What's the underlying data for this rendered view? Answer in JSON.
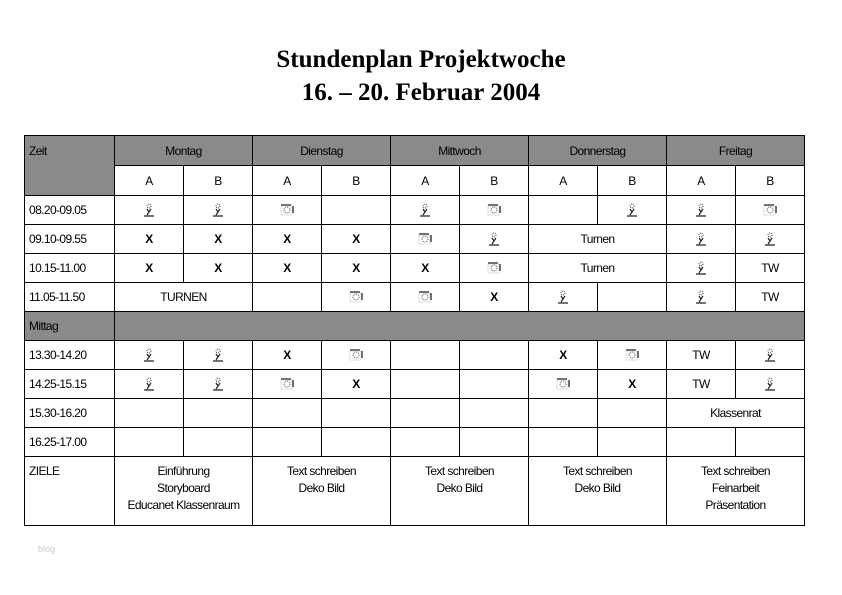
{
  "title_line1": "Stundenplan Projektwoche",
  "title_line2": "16. – 20. Februar 2004",
  "header": {
    "zeit": "Zeit",
    "days": [
      "Montag",
      "Dienstag",
      "Mittwoch",
      "Donnerstag",
      "Freitag"
    ],
    "sub": [
      "A",
      "B",
      "A",
      "B",
      "A",
      "B",
      "A",
      "B",
      "A",
      "B"
    ]
  },
  "rows": [
    {
      "time": "08.20-09.05",
      "cells": [
        {
          "icon": "figure"
        },
        {
          "icon": "figure"
        },
        {
          "icon": "camera"
        },
        {
          "text": ""
        },
        {
          "icon": "figure"
        },
        {
          "icon": "camera"
        },
        {
          "text": ""
        },
        {
          "icon": "figure"
        },
        {
          "icon": "figure"
        },
        {
          "icon": "camera"
        }
      ]
    },
    {
      "time": "09.10-09.55",
      "cells": [
        {
          "text": "X"
        },
        {
          "text": "X"
        },
        {
          "text": "X"
        },
        {
          "text": "X"
        },
        {
          "icon": "camera"
        },
        {
          "icon": "figure"
        },
        {
          "text": "Turnen",
          "span": 2
        },
        {
          "icon": "figure"
        },
        {
          "icon": "figure"
        }
      ]
    },
    {
      "time": "10.15-11.00",
      "cells": [
        {
          "text": "X"
        },
        {
          "text": "X"
        },
        {
          "text": "X"
        },
        {
          "text": "X"
        },
        {
          "text": "X"
        },
        {
          "icon": "camera"
        },
        {
          "text": "Turnen",
          "span": 2
        },
        {
          "icon": "figure"
        },
        {
          "text": "TW"
        }
      ]
    },
    {
      "time": "11.05-11.50",
      "cells": [
        {
          "text": "TURNEN",
          "span": 2
        },
        {
          "text": ""
        },
        {
          "icon": "camera"
        },
        {
          "icon": "camera"
        },
        {
          "text": "X"
        },
        {
          "icon": "figure"
        },
        {
          "text": ""
        },
        {
          "icon": "figure"
        },
        {
          "text": "TW"
        }
      ]
    },
    {
      "time": "Mittag",
      "mittag": true
    },
    {
      "time": "13.30-14.20",
      "cells": [
        {
          "icon": "figure"
        },
        {
          "icon": "figure"
        },
        {
          "text": "X"
        },
        {
          "icon": "camera"
        },
        {
          "text": ""
        },
        {
          "text": ""
        },
        {
          "text": "X"
        },
        {
          "icon": "camera"
        },
        {
          "text": "TW"
        },
        {
          "icon": "figure"
        }
      ]
    },
    {
      "time": "14.25-15.15",
      "cells": [
        {
          "icon": "figure"
        },
        {
          "icon": "figure"
        },
        {
          "icon": "camera"
        },
        {
          "text": "X"
        },
        {
          "text": ""
        },
        {
          "text": ""
        },
        {
          "icon": "camera"
        },
        {
          "text": "X"
        },
        {
          "text": "TW"
        },
        {
          "icon": "figure"
        }
      ]
    },
    {
      "time": "15.30-16.20",
      "cells": [
        {
          "text": ""
        },
        {
          "text": ""
        },
        {
          "text": ""
        },
        {
          "text": ""
        },
        {
          "text": ""
        },
        {
          "text": ""
        },
        {
          "text": ""
        },
        {
          "text": ""
        },
        {
          "text": "Klassenrat",
          "span": 2
        }
      ]
    },
    {
      "time": "16.25-17.00",
      "cells": [
        {
          "text": ""
        },
        {
          "text": ""
        },
        {
          "text": ""
        },
        {
          "text": ""
        },
        {
          "text": ""
        },
        {
          "text": ""
        },
        {
          "text": ""
        },
        {
          "text": ""
        },
        {
          "text": ""
        },
        {
          "text": ""
        }
      ]
    }
  ],
  "ziele": {
    "label": "ZIELE",
    "days": [
      [
        "Einführung",
        "Storyboard",
        "Educanet Klassenraum"
      ],
      [
        "Text schreiben",
        "Deko Bild"
      ],
      [
        "Text schreiben",
        "Deko Bild"
      ],
      [
        "Text schreiben",
        "Deko Bild"
      ],
      [
        "Text schreiben",
        "Feinarbeit",
        "Präsentation"
      ]
    ]
  },
  "footer_text": "blog",
  "colors": {
    "header_gray": "#8a8a8a"
  }
}
